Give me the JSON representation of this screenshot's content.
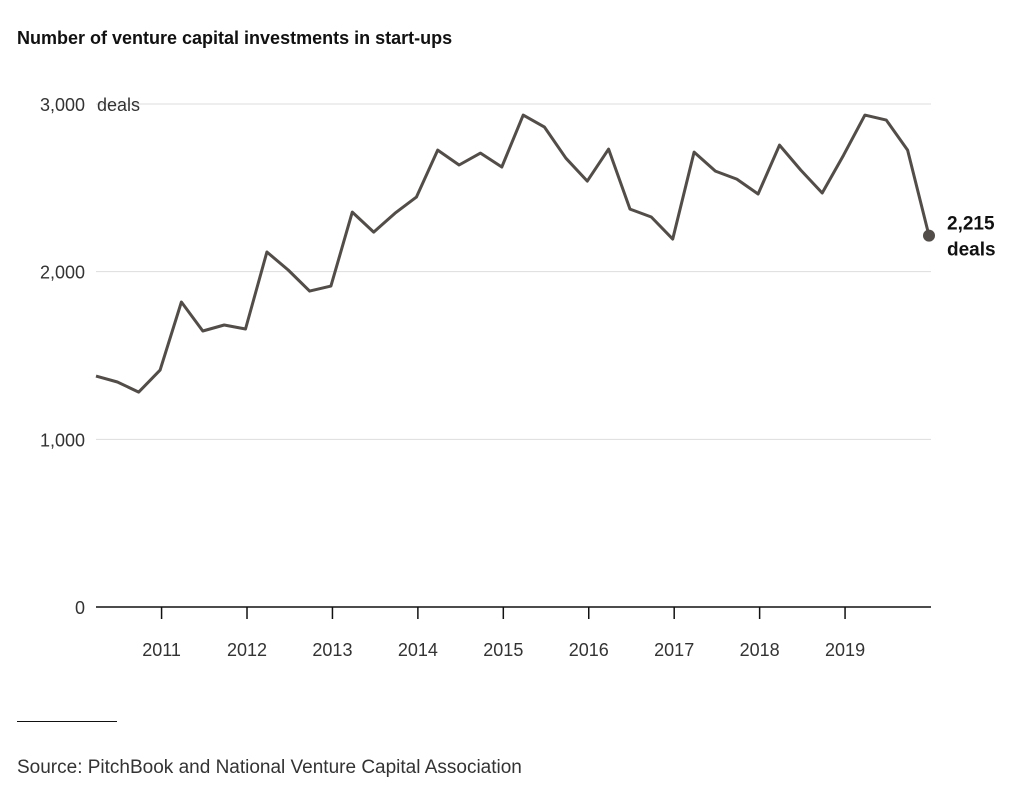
{
  "chart_data": {
    "type": "line",
    "title": "Number of venture capital investments in start-ups",
    "source": "Source: PitchBook and National Venture Capital Association",
    "ylabel": "",
    "y_unit_label": "deals",
    "ylim": [
      0,
      3000
    ],
    "yticks": [
      0,
      1000,
      2000,
      3000
    ],
    "ytick_labels": [
      "0",
      "1,000",
      "2,000",
      "3,000"
    ],
    "xticks": [
      "2011",
      "2012",
      "2013",
      "2014",
      "2015",
      "2016",
      "2017",
      "2018",
      "2019"
    ],
    "grid": true,
    "x_start": "2010 Q1",
    "x_end": "2019 Q4",
    "frequency": "quarterly",
    "series": [
      {
        "name": "Deals",
        "color": "#524d48",
        "values": [
          1377,
          1342,
          1282,
          1413,
          1819,
          1646,
          1682,
          1658,
          2117,
          2010,
          1884,
          1914,
          2355,
          2236,
          2349,
          2445,
          2725,
          2636,
          2707,
          2624,
          2934,
          2862,
          2677,
          2540,
          2731,
          2373,
          2326,
          2194,
          2713,
          2600,
          2552,
          2463,
          2755,
          2606,
          2469,
          2695,
          2934,
          2904,
          2725,
          2215
        ]
      }
    ],
    "end_label": {
      "value": "2,215",
      "unit": "deals"
    }
  }
}
